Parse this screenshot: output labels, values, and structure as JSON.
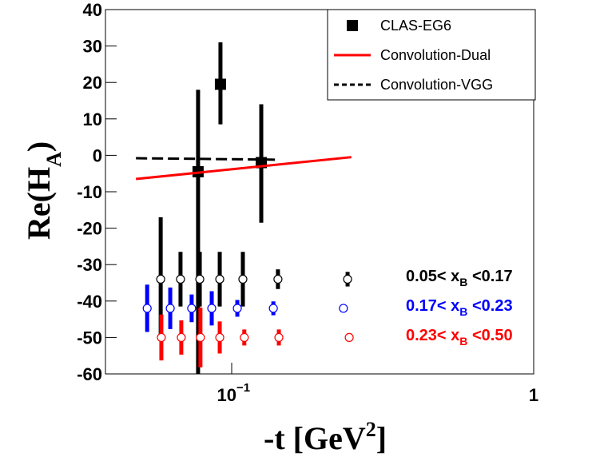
{
  "chart_data": {
    "type": "scatter",
    "xscale": "log",
    "xlim": [
      0.0382,
      1
    ],
    "ylim": [
      -60,
      40
    ],
    "xticks": [
      {
        "value": 0.1,
        "label": "10",
        "exponent": "−1"
      },
      1
    ],
    "yticks": [
      -60,
      -50,
      -40,
      -30,
      -20,
      -10,
      0,
      10,
      20,
      30,
      40
    ],
    "ylabel": "Re(H",
    "ylabel_sub": "A",
    "ylabel_end": ")",
    "xlabel": "-t [GeV",
    "xlabel_sup": "2",
    "xlabel_end": "]",
    "series": [
      {
        "name": "CLAS-EG6",
        "marker": "square",
        "color": "#000000",
        "x": [
          0.0774,
          0.0918,
          0.1253
        ],
        "values": [
          -4.5,
          19.5,
          -2
        ],
        "errors_low": [
          55.5,
          11,
          16.5
        ],
        "errors_high": [
          22.5,
          11.5,
          16
        ]
      },
      {
        "name": "Convolution-Dual",
        "marker": "line",
        "color": "#ff0000",
        "x": [
          0.0482,
          0.249
        ],
        "values": [
          -6.5,
          -0.5
        ]
      },
      {
        "name": "Convolution-VGG",
        "marker": "line",
        "dash": true,
        "color": "#000000",
        "x": [
          0.0482,
          0.144
        ],
        "values": [
          -0.8,
          -1.2
        ]
      },
      {
        "name": "0.05< x",
        "name_sub": "B",
        "name_end": " <0.17",
        "marker": "open-circle",
        "color": "#000000",
        "x": [
          0.0582,
          0.0677,
          0.0784,
          0.0913,
          0.1089,
          0.1423,
          0.242
        ],
        "values": [
          -34,
          -34,
          -34,
          -34,
          -34,
          -34,
          -34
        ],
        "errors": [
          17,
          7.5,
          7.5,
          7.5,
          7.5,
          2.7,
          2
        ]
      },
      {
        "name": "0.17< x",
        "name_sub": "B",
        "name_end": " <0.23",
        "marker": "open-circle",
        "color": "#0000ff",
        "x": [
          0.0525,
          0.0626,
          0.0737,
          0.0859,
          0.1044,
          0.1374,
          0.2344
        ],
        "values": [
          -42,
          -42,
          -42,
          -42,
          -42,
          -42,
          -42
        ],
        "errors": [
          6.5,
          5.7,
          3.8,
          4.7,
          2.3,
          1.9,
          0
        ]
      },
      {
        "name": "0.23< x",
        "name_sub": "B",
        "name_end": " <0.50",
        "marker": "open-circle",
        "color": "#ff0000",
        "x": [
          0.0585,
          0.0681,
          0.0788,
          0.0913,
          0.1101,
          0.1433,
          0.245
        ],
        "values": [
          -50,
          -50,
          -50,
          -50,
          -50,
          -50,
          -50
        ],
        "errors": [
          6.3,
          4.7,
          8.2,
          4.4,
          2.2,
          2.2,
          0
        ]
      }
    ]
  }
}
